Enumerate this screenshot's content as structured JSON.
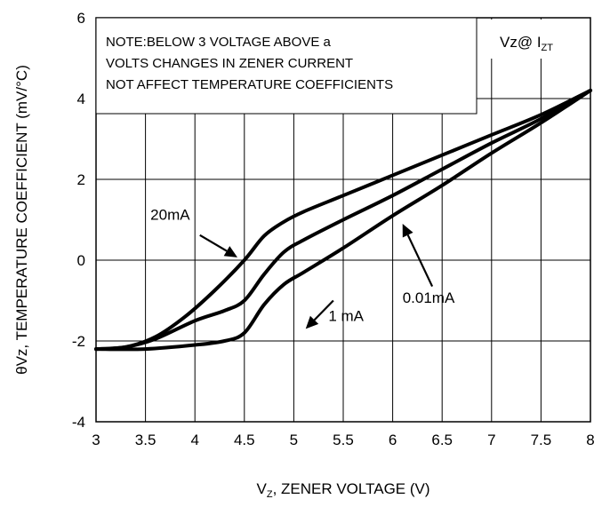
{
  "chart_data": {
    "type": "line",
    "title": "",
    "xlabel": "V",
    "xlabel_sub": "Z",
    "xlabel_rest": ", ZENER VOLTAGE (V)",
    "ylabel": "θVz, TEMPERATURE COEFFICIENT (mV/°C)",
    "xlim": [
      3,
      8
    ],
    "ylim": [
      -4,
      6
    ],
    "x_ticks": [
      "3",
      "3.5",
      "4",
      "4.5",
      "5",
      "5.5",
      "6",
      "6.5",
      "7",
      "7.5",
      "8"
    ],
    "y_ticks": [
      "-4",
      "-2",
      "0",
      "2",
      "4",
      "6"
    ],
    "grid": true,
    "note_lines": [
      "NOTE:BELOW 3 VOLTAGE ABOVE a",
      "VOLTS CHANGES IN ZENER CURRENT",
      "NOT AFFECT TEMPERATURE COEFFICIENTS"
    ],
    "corner_label": "Vz@ I",
    "corner_label_sub": "ZT",
    "series": [
      {
        "name": "20mA",
        "x": [
          3.0,
          3.3,
          3.6,
          3.9,
          4.2,
          4.5,
          4.7,
          4.9,
          5.1,
          5.5,
          6.0,
          6.5,
          7.0,
          7.5,
          8.0
        ],
        "y": [
          -2.2,
          -2.15,
          -1.9,
          -1.4,
          -0.75,
          0.0,
          0.6,
          0.95,
          1.2,
          1.6,
          2.1,
          2.6,
          3.1,
          3.6,
          4.2
        ]
      },
      {
        "name": "1 mA",
        "x": [
          3.0,
          3.3,
          3.6,
          4.0,
          4.3,
          4.5,
          4.7,
          4.9,
          5.1,
          5.5,
          6.0,
          6.5,
          7.0,
          7.5,
          8.0
        ],
        "y": [
          -2.2,
          -2.15,
          -1.95,
          -1.5,
          -1.25,
          -1.0,
          -0.35,
          0.2,
          0.5,
          1.0,
          1.6,
          2.25,
          2.9,
          3.5,
          4.2
        ]
      },
      {
        "name": "0.01mA",
        "x": [
          3.0,
          3.5,
          4.0,
          4.3,
          4.5,
          4.7,
          4.9,
          5.1,
          5.5,
          6.0,
          6.5,
          7.0,
          7.5,
          8.0
        ],
        "y": [
          -2.2,
          -2.2,
          -2.1,
          -2.0,
          -1.8,
          -1.1,
          -0.6,
          -0.3,
          0.3,
          1.1,
          1.85,
          2.65,
          3.4,
          4.2
        ]
      }
    ],
    "annotations": [
      {
        "text": "20mA",
        "label_x": 3.55,
        "label_y": 1.0,
        "arrow_from": [
          4.05,
          0.62
        ],
        "arrow_to": [
          4.43,
          0.07
        ]
      },
      {
        "text": "1 mA",
        "label_x": 5.35,
        "label_y": -1.5,
        "arrow_from": [
          5.4,
          -1.0
        ],
        "arrow_to": [
          5.12,
          -1.7
        ]
      },
      {
        "text": "0.01mA",
        "label_x": 6.1,
        "label_y": -1.05,
        "arrow_from": [
          6.4,
          -0.65
        ],
        "arrow_to": [
          6.1,
          0.9
        ]
      }
    ]
  }
}
